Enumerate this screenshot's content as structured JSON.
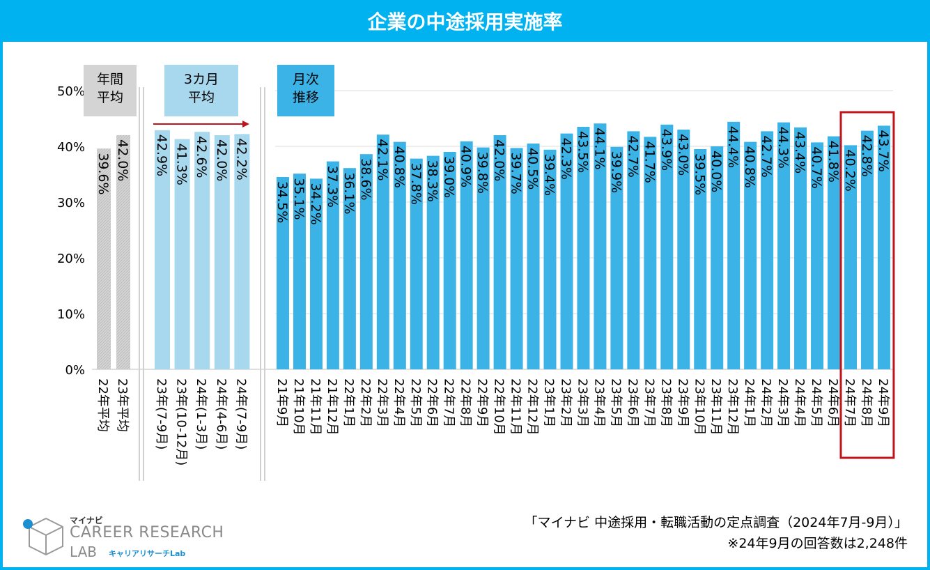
{
  "title": "企業の中途採用実施率",
  "source_line1": "「マイナビ 中途採用・転職活動の定点調査（2024年7月-9月）」",
  "source_line2": "※24年9月の回答数は2,248件",
  "logo": {
    "brand": "マイナビ",
    "line1": "CAREER RESEARCH",
    "line2": "LAB",
    "sub": "キャリアリサーチLab"
  },
  "colors": {
    "annual": "#d4d4d4",
    "quarter": "#a8d8ee",
    "monthly": "#3cb3e6",
    "highlight": "#c0141c",
    "arrow": "#c0141c"
  },
  "chart_data": {
    "type": "bar",
    "ylim": [
      0,
      50
    ],
    "yticks": [
      "0%",
      "10%",
      "20%",
      "30%",
      "40%",
      "50%"
    ],
    "groups": [
      {
        "label": "年間\n平均",
        "label_lines": [
          "年間",
          "平均"
        ],
        "categories": [
          "22年平均",
          "23年平均"
        ],
        "values": [
          39.6,
          42.0
        ],
        "value_labels": [
          "39.6%",
          "42.0%"
        ]
      },
      {
        "label": "3カ月\n平均",
        "label_lines": [
          "3カ月",
          "平均"
        ],
        "categories": [
          "23年(7-9月)",
          "23年(10-12月)",
          "24年(1-3月)",
          "24年(4-6月)",
          "24年(7-9月)"
        ],
        "values": [
          42.9,
          41.3,
          42.6,
          42.0,
          42.2
        ],
        "value_labels": [
          "42.9%",
          "41.3%",
          "42.6%",
          "42.0%",
          "42.2%"
        ]
      },
      {
        "label": "月次\n推移",
        "label_lines": [
          "月次",
          "推移"
        ],
        "categories": [
          "21年9月",
          "21年10月",
          "21年11月",
          "21年12月",
          "22年1月",
          "22年2月",
          "22年3月",
          "22年4月",
          "22年5月",
          "22年6月",
          "22年7月",
          "22年8月",
          "22年9月",
          "22年10月",
          "22年11月",
          "22年12月",
          "23年1月",
          "23年2月",
          "23年3月",
          "23年4月",
          "23年5月",
          "23年6月",
          "23年7月",
          "23年8月",
          "23年9月",
          "23年10月",
          "23年11月",
          "23年12月",
          "24年1月",
          "24年2月",
          "24年3月",
          "24年4月",
          "24年5月",
          "24年6月",
          "24年7月",
          "24年8月",
          "24年9月"
        ],
        "values": [
          34.5,
          35.1,
          34.2,
          37.3,
          36.1,
          38.6,
          42.1,
          40.8,
          37.8,
          38.3,
          39.0,
          40.9,
          39.8,
          42.0,
          39.7,
          40.5,
          39.4,
          42.3,
          43.5,
          44.1,
          39.9,
          42.7,
          41.7,
          43.9,
          43.0,
          39.5,
          40.0,
          44.4,
          40.8,
          42.7,
          44.3,
          43.4,
          40.7,
          41.8,
          40.2,
          42.8,
          43.7
        ],
        "value_labels": [
          "34.5%",
          "35.1%",
          "34.2%",
          "37.3%",
          "36.1%",
          "38.6%",
          "42.1%",
          "40.8%",
          "37.8%",
          "38.3%",
          "39.0%",
          "40.9%",
          "39.8%",
          "42.0%",
          "39.7%",
          "40.5%",
          "39.4%",
          "42.3%",
          "43.5%",
          "44.1%",
          "39.9%",
          "42.7%",
          "41.7%",
          "43.9%",
          "43.0%",
          "39.5%",
          "40.0%",
          "44.4%",
          "40.8%",
          "42.7%",
          "44.3%",
          "43.4%",
          "40.7%",
          "41.8%",
          "40.2%",
          "42.8%",
          "43.7%"
        ],
        "highlight": [
          "24年7月",
          "24年8月",
          "24年9月"
        ]
      }
    ]
  }
}
